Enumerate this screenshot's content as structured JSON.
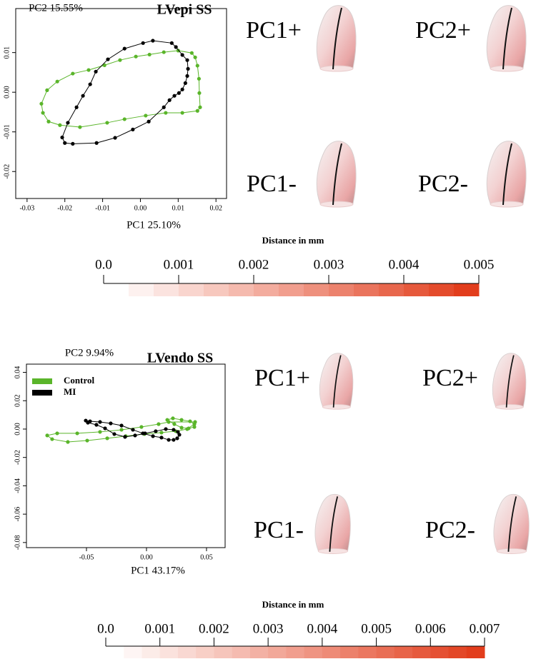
{
  "chart_data": [
    {
      "type": "line",
      "title": "LVepi SS",
      "xlabel": "PC1 25.10%",
      "ylabel": "PC2 15.55%",
      "xlim": [
        -0.033,
        0.0228
      ],
      "ylim": [
        -0.0268,
        0.0211
      ],
      "xticks": [
        -0.03,
        -0.02,
        -0.01,
        {
          "value": 0,
          "label": "0.00"
        },
        0.01,
        0.02
      ],
      "yticks": [
        -0.02,
        -0.01,
        {
          "value": 0,
          "label": "0.00"
        },
        0.01
      ],
      "series": [
        {
          "name": "Control",
          "color": "#5ab52a",
          "x": [
            -0.0258,
            -0.0262,
            -0.0247,
            -0.022,
            -0.0179,
            -0.0137,
            -0.0095,
            -0.0054,
            -0.0012,
            0.0024,
            0.0062,
            0.01,
            0.0136,
            0.0145,
            0.0151,
            0.0155,
            0.0156,
            0.0158,
            0.0151,
            0.0111,
            0.0067,
            0.0014,
            -0.0042,
            -0.0088,
            -0.016,
            -0.0213,
            -0.0243
          ],
          "values": [
            -0.0052,
            -0.0029,
            0.0005,
            0.0027,
            0.0047,
            0.0056,
            0.0068,
            0.0081,
            0.009,
            0.0095,
            0.0101,
            0.0105,
            0.0099,
            0.0088,
            0.0067,
            0.0034,
            -0.0002,
            -0.0038,
            -0.0047,
            -0.0052,
            -0.0052,
            -0.0059,
            -0.0068,
            -0.0077,
            -0.0088,
            -0.0083,
            -0.0074
          ]
        },
        {
          "name": "MI",
          "color": "#000000",
          "x": [
            -0.0207,
            -0.02,
            -0.0179,
            -0.0116,
            -0.0067,
            -0.002,
            0.0022,
            0.0062,
            0.0077,
            0.009,
            0.0102,
            0.0111,
            0.0119,
            0.0124,
            0.0126,
            0.0124,
            0.0111,
            0.0094,
            0.0083,
            0.0033,
            0.0007,
            -0.0042,
            -0.0086,
            -0.0118,
            -0.0133,
            -0.0152,
            -0.0169,
            -0.0192
          ],
          "values": [
            -0.0114,
            -0.0128,
            -0.013,
            -0.0128,
            -0.0115,
            -0.0094,
            -0.0074,
            -0.0038,
            -0.002,
            -0.0009,
            -0.0002,
            0.0007,
            0.0023,
            0.0041,
            0.0059,
            0.0081,
            0.0094,
            0.0114,
            0.0124,
            0.013,
            0.0124,
            0.011,
            0.0083,
            0.0052,
            0.002,
            -0.0009,
            -0.0038,
            -0.0077
          ]
        }
      ],
      "shape_labels": [
        "PC1+",
        "PC2+",
        "PC1-",
        "PC2-"
      ],
      "colorbar": {
        "title": "Distance in mm",
        "lim": [
          0,
          0.005
        ],
        "color_low": "#ffffff",
        "color_high": "#e23d1c",
        "ticks": [
          {
            "value": 0,
            "label": "0.0"
          },
          0.001,
          0.002,
          0.003,
          0.004,
          0.005
        ]
      }
    },
    {
      "type": "line",
      "title": "LVendo SS",
      "xlabel": "PC1 43.17%",
      "ylabel": "PC2 9.94%",
      "xlim": [
        -0.1,
        0.0655
      ],
      "ylim": [
        -0.0836,
        0.0458
      ],
      "legend": "upper left",
      "xticks": [
        -0.05,
        {
          "value": 0,
          "label": "0.00"
        },
        0.05
      ],
      "yticks": [
        -0.08,
        -0.06,
        -0.04,
        -0.02,
        {
          "value": 0,
          "label": "0.00"
        },
        0.02,
        0.04
      ],
      "series": [
        {
          "name": "Control",
          "color": "#5ab52a",
          "x": [
            0.0405,
            0.0399,
            0.0351,
            0.0292,
            0.0232,
            0.0173,
            0.022,
            0.0292,
            0.0363,
            0.0399,
            0.0339,
            0.0244,
            0.0125,
            -0.0018,
            -0.0173,
            -0.0327,
            -0.0494,
            -0.0655,
            -0.0786,
            -0.0827,
            -0.0744,
            -0.0577,
            -0.0387,
            -0.0208,
            -0.0042,
            0.0101,
            0.0185
          ],
          "values": [
            0.005,
            0.0015,
            0.0005,
            0.001,
            0.0035,
            0.0065,
            0.0076,
            0.0065,
            0.0055,
            0.0035,
            0,
            -0.0015,
            -0.0025,
            -0.0035,
            -0.005,
            -0.0065,
            -0.0081,
            -0.0091,
            -0.0071,
            -0.0045,
            -0.003,
            -0.003,
            -0.002,
            -0.0005,
            0.0015,
            0.0035,
            0.005
          ]
        },
        {
          "name": "MI",
          "color": "#000000",
          "x": [
            -0.0506,
            -0.047,
            -0.0387,
            -0.0298,
            -0.0208,
            -0.0113,
            -0.003,
            0.0054,
            0.0125,
            0.0185,
            0.0226,
            0.0256,
            0.0274,
            0.0262,
            0.0226,
            0.0161,
            0.0077,
            -0.0012,
            -0.0095,
            -0.0179,
            -0.0268,
            -0.0345,
            -0.0417,
            -0.0488
          ],
          "values": [
            0.006,
            0.0055,
            0.005,
            0.004,
            0.0025,
            -0.0005,
            -0.003,
            -0.005,
            -0.006,
            -0.0076,
            -0.0076,
            -0.0065,
            -0.004,
            -0.002,
            -0.0005,
            0,
            -0.0015,
            -0.003,
            -0.0045,
            -0.0055,
            -0.0035,
            0.0005,
            0.003,
            0.0045
          ]
        }
      ],
      "shape_labels": [
        "PC1+",
        "PC2+",
        "PC1-",
        "PC2-"
      ],
      "colorbar": {
        "title": "Distance in mm",
        "lim": [
          0,
          0.007
        ],
        "color_low": "#ffffff",
        "color_high": "#e23d1c",
        "ticks": [
          {
            "value": 0,
            "label": "0.0"
          },
          0.001,
          0.002,
          0.003,
          0.004,
          0.005,
          0.006,
          0.007
        ]
      }
    }
  ]
}
